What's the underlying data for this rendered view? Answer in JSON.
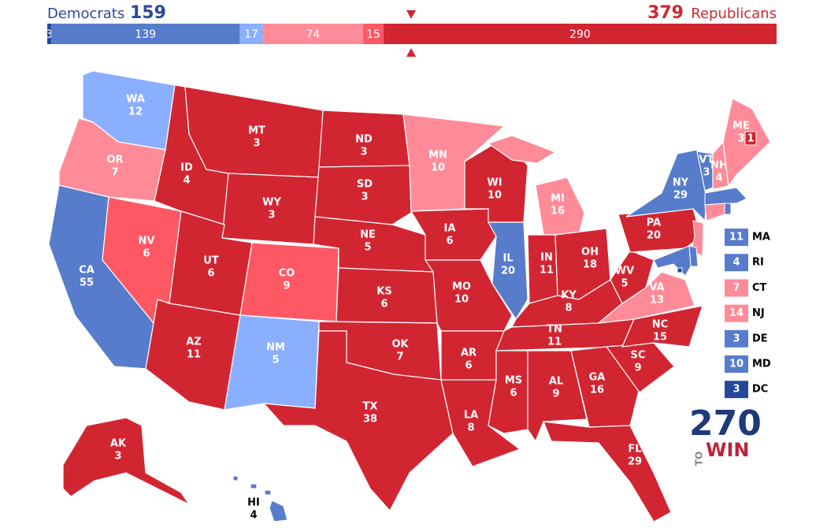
{
  "header": {
    "left_party": "Democrats",
    "left_total": 159,
    "right_total": 379,
    "right_party": "Republicans"
  },
  "bar": {
    "segments": [
      {
        "value": 3,
        "color": "#244999"
      },
      {
        "value": 139,
        "color": "#577ccc"
      },
      {
        "value": 17,
        "color": "#8aafff"
      },
      {
        "value": 74,
        "color": "#ff8b98"
      },
      {
        "value": 15,
        "color": "#ff5865"
      },
      {
        "value": 290,
        "color": "#d22532"
      }
    ]
  },
  "states": [
    {
      "label": "WA",
      "votes": 12,
      "color": "#8aafff"
    },
    {
      "label": "OR",
      "votes": 7,
      "color": "#ff8b98"
    },
    {
      "label": "CA",
      "votes": 55,
      "color": "#577ccc"
    },
    {
      "label": "NV",
      "votes": 6,
      "color": "#ff5865"
    },
    {
      "label": "ID",
      "votes": 4,
      "color": "#d22532"
    },
    {
      "label": "MT",
      "votes": 3,
      "color": "#d22532"
    },
    {
      "label": "WY",
      "votes": 3,
      "color": "#d22532"
    },
    {
      "label": "UT",
      "votes": 6,
      "color": "#d22532"
    },
    {
      "label": "AZ",
      "votes": 11,
      "color": "#d22532"
    },
    {
      "label": "CO",
      "votes": 9,
      "color": "#ff5865"
    },
    {
      "label": "NM",
      "votes": 5,
      "color": "#8aafff"
    },
    {
      "label": "ND",
      "votes": 3,
      "color": "#d22532"
    },
    {
      "label": "SD",
      "votes": 3,
      "color": "#d22532"
    },
    {
      "label": "NE",
      "votes": 5,
      "color": "#d22532"
    },
    {
      "label": "KS",
      "votes": 6,
      "color": "#d22532"
    },
    {
      "label": "OK",
      "votes": 7,
      "color": "#d22532"
    },
    {
      "label": "TX",
      "votes": 38,
      "color": "#d22532"
    },
    {
      "label": "MN",
      "votes": 10,
      "color": "#ff8b98"
    },
    {
      "label": "IA",
      "votes": 6,
      "color": "#d22532"
    },
    {
      "label": "MO",
      "votes": 10,
      "color": "#d22532"
    },
    {
      "label": "AR",
      "votes": 6,
      "color": "#d22532"
    },
    {
      "label": "LA",
      "votes": 8,
      "color": "#d22532"
    },
    {
      "label": "WI",
      "votes": 10,
      "color": "#d22532"
    },
    {
      "label": "IL",
      "votes": 20,
      "color": "#577ccc"
    },
    {
      "label": "MI",
      "votes": 16,
      "color": "#ff8b98"
    },
    {
      "label": "IN",
      "votes": 11,
      "color": "#d22532"
    },
    {
      "label": "OH",
      "votes": 18,
      "color": "#d22532"
    },
    {
      "label": "KY",
      "votes": 8,
      "color": "#d22532"
    },
    {
      "label": "TN",
      "votes": 11,
      "color": "#d22532"
    },
    {
      "label": "MS",
      "votes": 6,
      "color": "#d22532"
    },
    {
      "label": "AL",
      "votes": 9,
      "color": "#d22532"
    },
    {
      "label": "GA",
      "votes": 16,
      "color": "#d22532"
    },
    {
      "label": "FL",
      "votes": 29,
      "color": "#d22532"
    },
    {
      "label": "SC",
      "votes": 9,
      "color": "#d22532"
    },
    {
      "label": "NC",
      "votes": 15,
      "color": "#d22532"
    },
    {
      "label": "VA",
      "votes": 13,
      "color": "#ff8b98"
    },
    {
      "label": "WV",
      "votes": 5,
      "color": "#d22532"
    },
    {
      "label": "PA",
      "votes": 20,
      "color": "#d22532"
    },
    {
      "label": "NY",
      "votes": 29,
      "color": "#577ccc"
    },
    {
      "label": "VT",
      "votes": 3,
      "color": "#577ccc"
    },
    {
      "label": "NH",
      "votes": 4,
      "color": "#ff8b98"
    },
    {
      "label": "ME",
      "votes": 3,
      "color": "#ff8b98",
      "district": {
        "votes": 1,
        "color": "#d22532"
      }
    },
    {
      "label": "AK",
      "votes": 3,
      "color": "#d22532"
    },
    {
      "label": "HI",
      "votes": 4,
      "color": "#577ccc"
    }
  ],
  "sidebar": [
    {
      "label": "MA",
      "votes": 11,
      "color": "#577ccc"
    },
    {
      "label": "RI",
      "votes": 4,
      "color": "#577ccc"
    },
    {
      "label": "CT",
      "votes": 7,
      "color": "#ff8b98"
    },
    {
      "label": "NJ",
      "votes": 14,
      "color": "#ff8b98"
    },
    {
      "label": "DE",
      "votes": 3,
      "color": "#577ccc"
    },
    {
      "label": "MD",
      "votes": 10,
      "color": "#577ccc"
    },
    {
      "label": "DC",
      "votes": 3,
      "color": "#244999"
    }
  ],
  "logo": {
    "number": "270",
    "small": "TO",
    "word": "WIN"
  }
}
